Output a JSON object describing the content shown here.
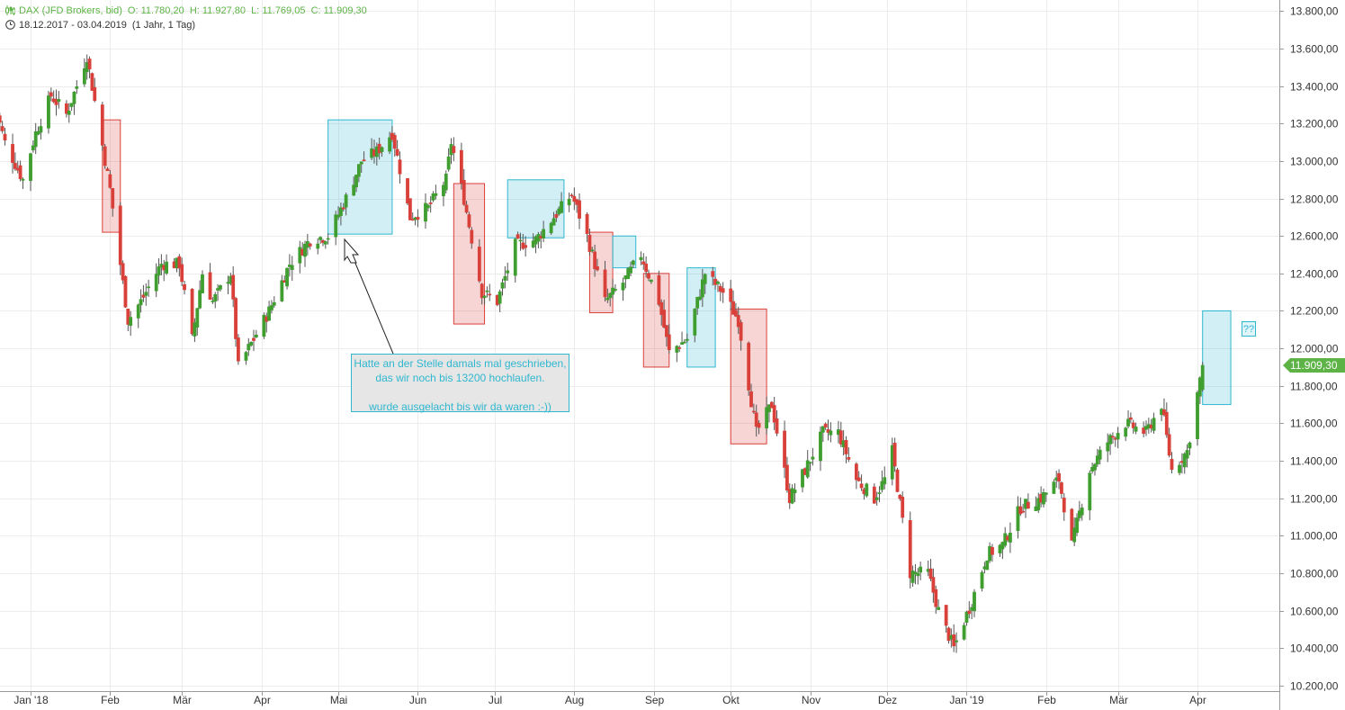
{
  "header": {
    "instrument": "DAX (JFD Brokers, bid)",
    "ohlc": "O: 11.780,20  H: 11.927,80  L: 11.769,05  C: 11.909,30",
    "range": "18.12.2017 - 03.04.2019",
    "interval": "(1 Jahr, 1 Tag)"
  },
  "chart_data": {
    "type": "candlestick",
    "title": "DAX (JFD Brokers, bid)",
    "y_ticks": [
      "10.200,00",
      "10.400,00",
      "10.600,00",
      "10.800,00",
      "11.000,00",
      "11.200,00",
      "11.400,00",
      "11.600,00",
      "11.800,00",
      "12.000,00",
      "12.200,00",
      "12.400,00",
      "12.600,00",
      "12.800,00",
      "13.000,00",
      "13.200,00",
      "13.400,00",
      "13.600,00",
      "13.800,00"
    ],
    "y_tick_values": [
      10200,
      10400,
      10600,
      10800,
      11000,
      11200,
      11400,
      11600,
      11800,
      12000,
      12200,
      12400,
      12600,
      12800,
      13000,
      13200,
      13400,
      13600,
      13800
    ],
    "ylim": [
      10170,
      13860
    ],
    "x_ticks": [
      "Jan '18",
      "Feb",
      "Mär",
      "Apr",
      "Mai",
      "Jun",
      "Jul",
      "Aug",
      "Sep",
      "Okt",
      "Nov",
      "Dez",
      "Jan '19",
      "Feb",
      "Mär",
      "Apr"
    ],
    "x_tick_dates": [
      "2018-01-01",
      "2018-02-01",
      "2018-03-01",
      "2018-04-01",
      "2018-05-01",
      "2018-06-01",
      "2018-07-01",
      "2018-08-01",
      "2018-09-01",
      "2018-10-01",
      "2018-11-01",
      "2018-12-01",
      "2019-01-01",
      "2019-02-01",
      "2019-03-01",
      "2019-04-01"
    ],
    "last_price_label": "11.909,30",
    "last_price": 11909.3,
    "colors": {
      "up": "#3f9e2f",
      "down": "#d9403a",
      "up_box": "#2fb7cf",
      "down_box": "#d9403a",
      "price_tag": "#5db346"
    },
    "close_path": [
      [
        "2017-12-18",
        13300
      ],
      [
        "2017-12-22",
        13100
      ],
      [
        "2017-12-29",
        12900
      ],
      [
        "2018-01-03",
        13150
      ],
      [
        "2018-01-09",
        13350
      ],
      [
        "2018-01-15",
        13250
      ],
      [
        "2018-01-19",
        13400
      ],
      [
        "2018-01-23",
        13560
      ],
      [
        "2018-01-26",
        13320
      ],
      [
        "2018-02-01",
        12850
      ],
      [
        "2018-02-05",
        12450
      ],
      [
        "2018-02-08",
        12150
      ],
      [
        "2018-02-13",
        12250
      ],
      [
        "2018-02-21",
        12450
      ],
      [
        "2018-02-28",
        12450
      ],
      [
        "2018-03-05",
        12050
      ],
      [
        "2018-03-09",
        12400
      ],
      [
        "2018-03-13",
        12250
      ],
      [
        "2018-03-20",
        12400
      ],
      [
        "2018-03-23",
        11900
      ],
      [
        "2018-03-29",
        12050
      ],
      [
        "2018-04-04",
        12200
      ],
      [
        "2018-04-12",
        12450
      ],
      [
        "2018-04-20",
        12580
      ],
      [
        "2018-04-27",
        12600
      ],
      [
        "2018-05-04",
        12800
      ],
      [
        "2018-05-10",
        13000
      ],
      [
        "2018-05-16",
        13050
      ],
      [
        "2018-05-22",
        13150
      ],
      [
        "2018-05-29",
        12700
      ],
      [
        "2018-06-05",
        12750
      ],
      [
        "2018-06-12",
        12900
      ],
      [
        "2018-06-14",
        13100
      ],
      [
        "2018-06-19",
        12800
      ],
      [
        "2018-06-26",
        12300
      ],
      [
        "2018-07-02",
        12250
      ],
      [
        "2018-07-09",
        12550
      ],
      [
        "2018-07-17",
        12580
      ],
      [
        "2018-07-24",
        12700
      ],
      [
        "2018-07-31",
        12820
      ],
      [
        "2018-08-06",
        12600
      ],
      [
        "2018-08-13",
        12250
      ],
      [
        "2018-08-20",
        12350
      ],
      [
        "2018-08-27",
        12500
      ],
      [
        "2018-09-03",
        12250
      ],
      [
        "2018-09-07",
        11980
      ],
      [
        "2018-09-14",
        12050
      ],
      [
        "2018-09-21",
        12400
      ],
      [
        "2018-09-28",
        12300
      ],
      [
        "2018-10-04",
        12150
      ],
      [
        "2018-10-11",
        11550
      ],
      [
        "2018-10-17",
        11700
      ],
      [
        "2018-10-24",
        11200
      ],
      [
        "2018-10-30",
        11350
      ],
      [
        "2018-11-06",
        11550
      ],
      [
        "2018-11-12",
        11550
      ],
      [
        "2018-11-19",
        11300
      ],
      [
        "2018-11-26",
        11200
      ],
      [
        "2018-11-30",
        11300
      ],
      [
        "2018-12-03",
        11450
      ],
      [
        "2018-12-10",
        10800
      ],
      [
        "2018-12-17",
        10800
      ],
      [
        "2018-12-21",
        10600
      ],
      [
        "2018-12-27",
        10400
      ],
      [
        "2019-01-03",
        10650
      ],
      [
        "2019-01-09",
        10900
      ],
      [
        "2019-01-15",
        10950
      ],
      [
        "2019-01-22",
        11150
      ],
      [
        "2019-01-30",
        11200
      ],
      [
        "2019-02-06",
        11300
      ],
      [
        "2019-02-11",
        10950
      ],
      [
        "2019-02-18",
        11350
      ],
      [
        "2019-02-25",
        11500
      ],
      [
        "2019-03-04",
        11600
      ],
      [
        "2019-03-12",
        11550
      ],
      [
        "2019-03-18",
        11700
      ],
      [
        "2019-03-22",
        11350
      ],
      [
        "2019-03-28",
        11450
      ],
      [
        "2019-04-03",
        11909.3
      ]
    ],
    "boxes": [
      {
        "kind": "down",
        "from": "2018-01-29",
        "to": "2018-02-05",
        "top": 13220,
        "bottom": 12620
      },
      {
        "kind": "up",
        "from": "2018-04-27",
        "to": "2018-05-22",
        "top": 13220,
        "bottom": 12610
      },
      {
        "kind": "down",
        "from": "2018-06-15",
        "to": "2018-06-27",
        "top": 12880,
        "bottom": 12130
      },
      {
        "kind": "up",
        "from": "2018-07-06",
        "to": "2018-07-28",
        "top": 12900,
        "bottom": 12590
      },
      {
        "kind": "down",
        "from": "2018-08-07",
        "to": "2018-08-16",
        "top": 12620,
        "bottom": 12190
      },
      {
        "kind": "up",
        "from": "2018-08-16",
        "to": "2018-08-25",
        "top": 12600,
        "bottom": 12430
      },
      {
        "kind": "down",
        "from": "2018-08-28",
        "to": "2018-09-07",
        "top": 12400,
        "bottom": 11900
      },
      {
        "kind": "up",
        "from": "2018-09-14",
        "to": "2018-09-25",
        "top": 12430,
        "bottom": 11900
      },
      {
        "kind": "down",
        "from": "2018-10-01",
        "to": "2018-10-15",
        "top": 12210,
        "bottom": 11490
      },
      {
        "kind": "up",
        "from": "2019-04-03",
        "to": "2019-04-14",
        "top": 12200,
        "bottom": 11700
      }
    ]
  },
  "annotation": {
    "lines": [
      "Hatte an der Stelle damals mal geschrieben,",
      "das wir noch bis 13200 hochlaufen.",
      "",
      "wurde ausgelacht bis wir da waren :-))"
    ]
  },
  "question_marks": "??"
}
